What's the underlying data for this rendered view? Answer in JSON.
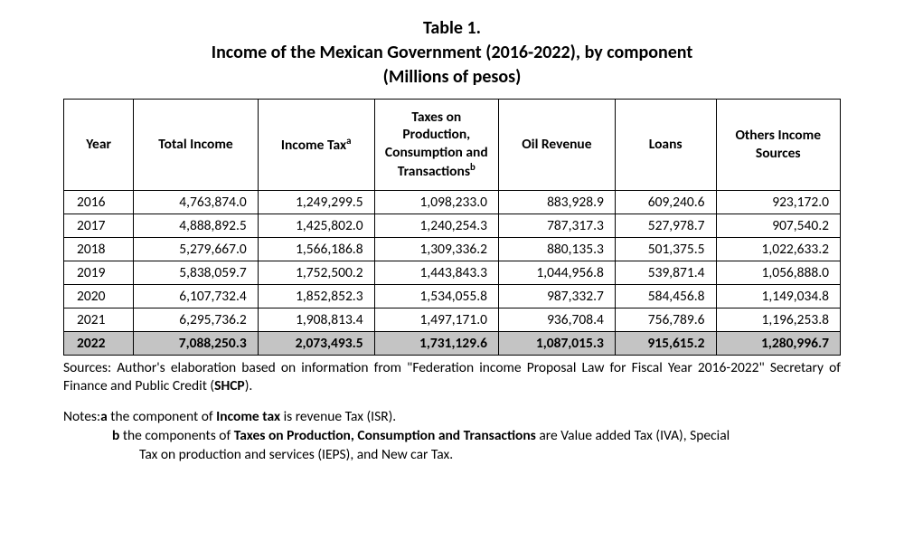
{
  "title": {
    "line1": "Table 1.",
    "line2": "Income of the Mexican Government (2016-2022), by component",
    "line3": "(Millions of pesos)"
  },
  "table": {
    "columns": [
      {
        "label": "Year",
        "sup": ""
      },
      {
        "label": "Total Income",
        "sup": ""
      },
      {
        "label": "Income Tax",
        "sup": "a"
      },
      {
        "label": "Taxes on Production, Consumption and Transactions",
        "sup": "b"
      },
      {
        "label": "Oil Revenue",
        "sup": ""
      },
      {
        "label": "Loans",
        "sup": ""
      },
      {
        "label": "Others Income Sources",
        "sup": ""
      }
    ],
    "rows": [
      {
        "year": "2016",
        "cells": [
          "4,763,874.0",
          "1,249,299.5",
          "1,098,233.0",
          "883,928.9",
          "609,240.6",
          "923,172.0"
        ],
        "highlight": false
      },
      {
        "year": "2017",
        "cells": [
          "4,888,892.5",
          "1,425,802.0",
          "1,240,254.3",
          "787,317.3",
          "527,978.7",
          "907,540.2"
        ],
        "highlight": false
      },
      {
        "year": "2018",
        "cells": [
          "5,279,667.0",
          "1,566,186.8",
          "1,309,336.2",
          "880,135.3",
          "501,375.5",
          "1,022,633.2"
        ],
        "highlight": false
      },
      {
        "year": "2019",
        "cells": [
          "5,838,059.7",
          "1,752,500.2",
          "1,443,843.3",
          "1,044,956.8",
          "539,871.4",
          "1,056,888.0"
        ],
        "highlight": false
      },
      {
        "year": "2020",
        "cells": [
          "6,107,732.4",
          "1,852,852.3",
          "1,534,055.8",
          "987,332.7",
          "584,456.8",
          "1,149,034.8"
        ],
        "highlight": false
      },
      {
        "year": "2021",
        "cells": [
          "6,295,736.2",
          "1,908,813.4",
          "1,497,171.0",
          "936,708.4",
          "756,789.6",
          "1,196,253.8"
        ],
        "highlight": false
      },
      {
        "year": "2022",
        "cells": [
          "7,088,250.3",
          "2,073,493.5",
          "1,731,129.6",
          "1,087,015.3",
          "915,615.2",
          "1,280,996.7"
        ],
        "highlight": true
      }
    ],
    "highlight_bg": "#c4c4c4",
    "border_color": "#000000",
    "background_color": "#ffffff",
    "text_color": "#000000",
    "header_fontsize": 15.5,
    "cell_fontsize": 15.5
  },
  "sources": {
    "prefix": "Sources: ",
    "text_before_bold": "Author's elaboration based on information from \"Federation income Proposal Law for Fiscal Year 2016-2022\" Secretary of Finance and Public Credit (",
    "bold": "SHCP",
    "text_after_bold": ")."
  },
  "notes": {
    "prefix": "Notes: ",
    "a": {
      "letter": "a",
      "before_bold": " the component of ",
      "bold": "Income tax",
      "after_bold": " is revenue Tax (ISR)."
    },
    "b": {
      "letter": "b",
      "before_bold": " the components of ",
      "bold": "Taxes on Production, Consumption and Transactions",
      "after_bold_line1": " are Value added Tax (IVA), Special",
      "line2": "Tax on production and services (IEPS), and New car Tax."
    }
  }
}
